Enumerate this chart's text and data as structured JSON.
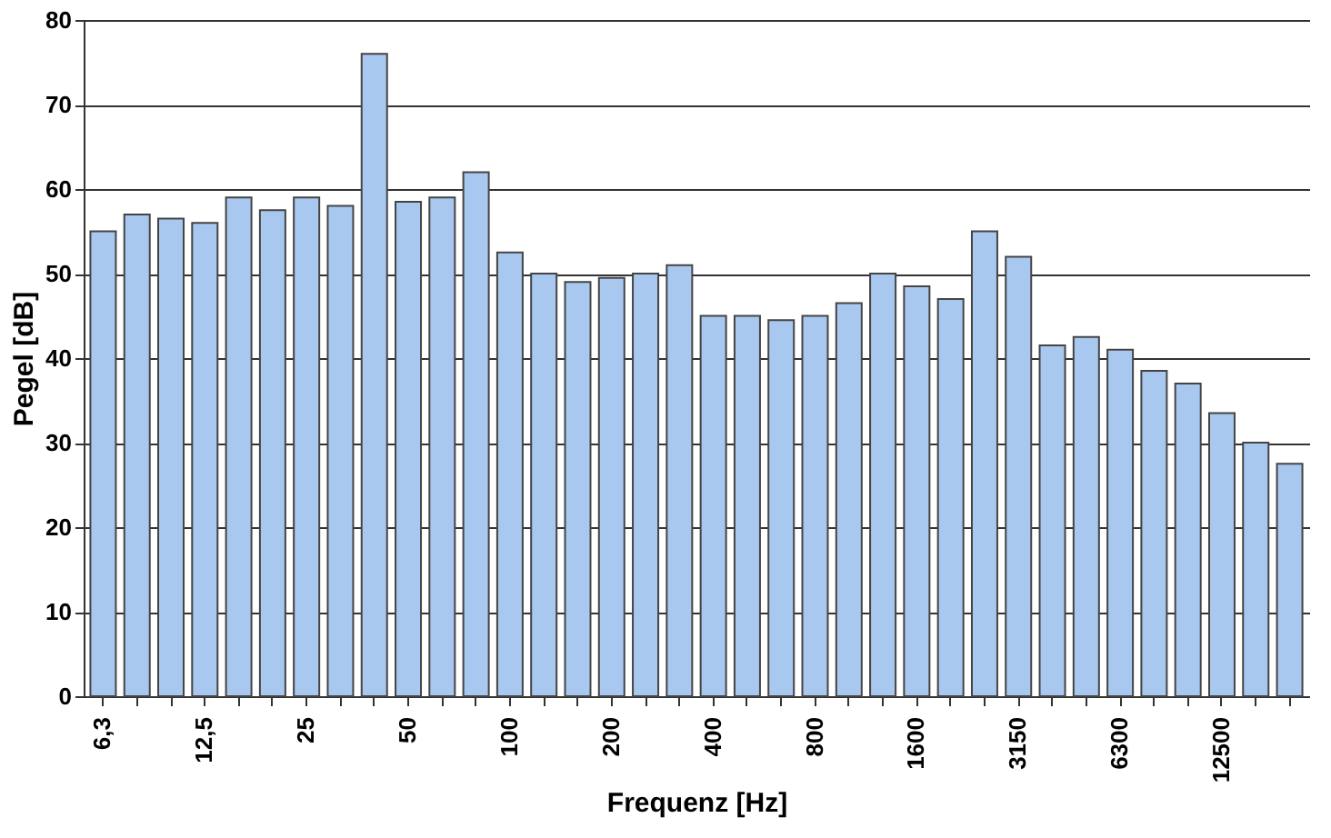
{
  "chart_data": {
    "type": "bar",
    "xlabel": "Frequenz [Hz]",
    "ylabel": "Pegel [dB]",
    "categories": [
      "6,3",
      null,
      null,
      "12,5",
      null,
      null,
      "25",
      null,
      null,
      "50",
      null,
      null,
      "100",
      null,
      null,
      "200",
      null,
      null,
      "400",
      null,
      null,
      "800",
      null,
      null,
      "1600",
      null,
      null,
      "3150",
      null,
      null,
      "6300",
      null,
      null,
      "12500",
      null,
      null
    ],
    "values": [
      55,
      57,
      56.5,
      56,
      59,
      57.5,
      59,
      58,
      76,
      58.5,
      59,
      62,
      52.5,
      50,
      49,
      49.5,
      50,
      51,
      45,
      45,
      44.5,
      45,
      46.5,
      50,
      48.5,
      47,
      55,
      52,
      41.5,
      42.5,
      41,
      38.5,
      37,
      33.5,
      30,
      27.5
    ],
    "color": "#a8c8f0",
    "ylim": [
      0,
      80
    ],
    "yticks": [
      0,
      10,
      20,
      30,
      40,
      50,
      60,
      70,
      80
    ],
    "grid": "y"
  }
}
